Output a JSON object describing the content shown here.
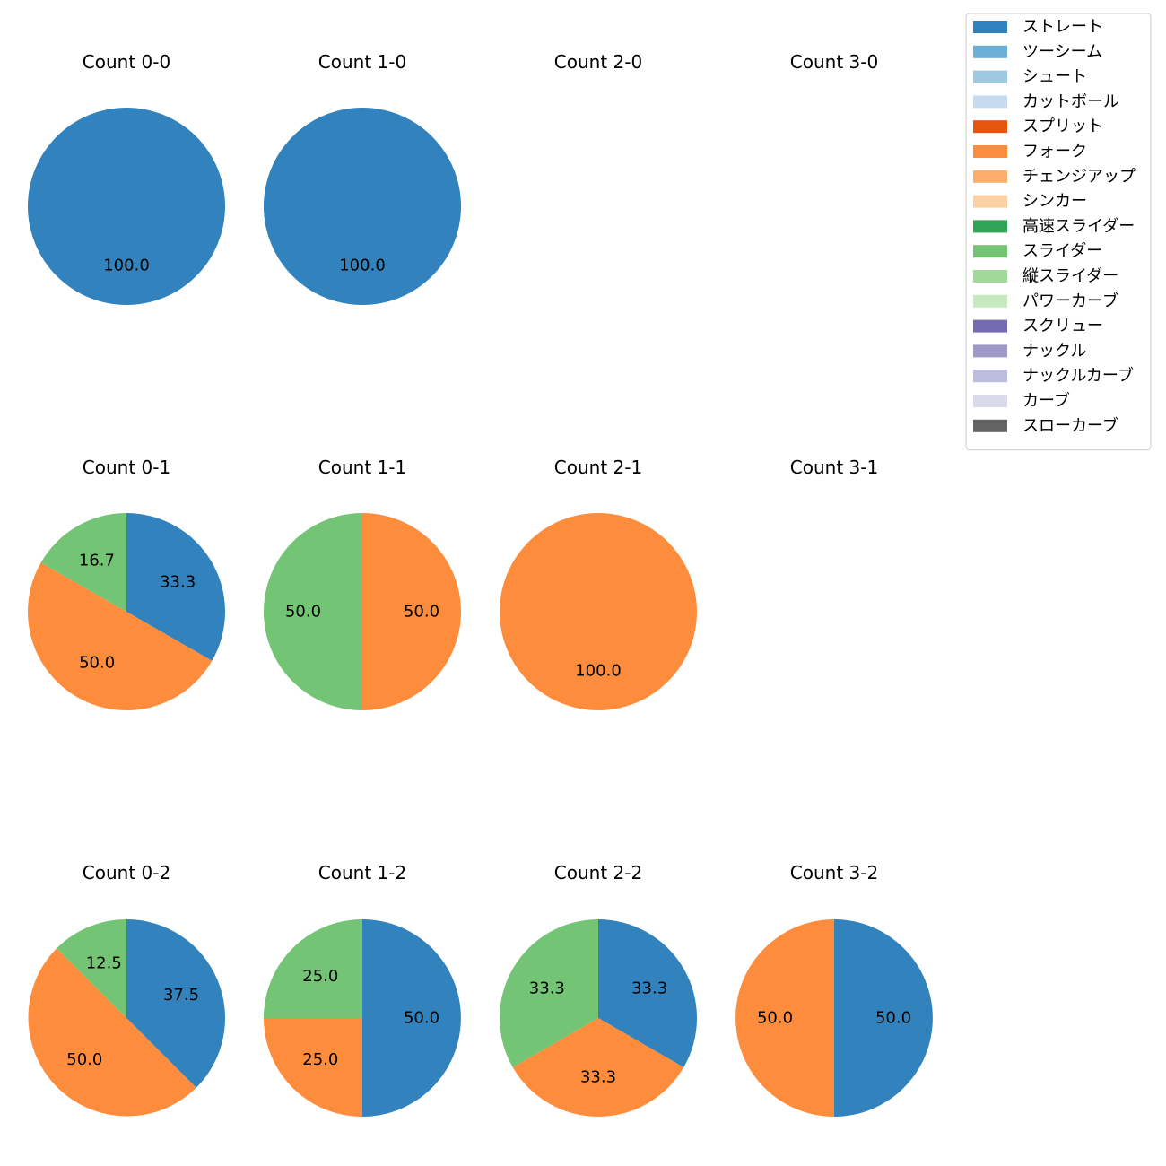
{
  "chart_data": {
    "type": "pie",
    "legend_position": "top-right",
    "categories": [
      "ストレート",
      "ツーシーム",
      "シュート",
      "カットボール",
      "スプリット",
      "フォーク",
      "チェンジアップ",
      "シンカー",
      "高速スライダー",
      "スライダー",
      "縦スライダー",
      "パワーカーブ",
      "スクリュー",
      "ナックル",
      "ナックルカーブ",
      "カーブ",
      "スローカーブ"
    ],
    "colors": [
      "#3182bd",
      "#6baed6",
      "#9ecae1",
      "#c6dbef",
      "#e6550d",
      "#fd8d3c",
      "#fdae6b",
      "#fdd0a2",
      "#31a354",
      "#74c476",
      "#a1d99b",
      "#c7e9c0",
      "#756bb1",
      "#9e9ac8",
      "#bcbddc",
      "#dadaeb",
      "#636363"
    ],
    "pies": [
      {
        "title": "Count 0-0",
        "slices": [
          {
            "category": "ストレート",
            "value": 100.0
          }
        ]
      },
      {
        "title": "Count 1-0",
        "slices": [
          {
            "category": "ストレート",
            "value": 100.0
          }
        ]
      },
      {
        "title": "Count 2-0",
        "slices": []
      },
      {
        "title": "Count 3-0",
        "slices": []
      },
      {
        "title": "Count 0-1",
        "slices": [
          {
            "category": "ストレート",
            "value": 33.3
          },
          {
            "category": "フォーク",
            "value": 50.0
          },
          {
            "category": "スライダー",
            "value": 16.7
          }
        ]
      },
      {
        "title": "Count 1-1",
        "slices": [
          {
            "category": "フォーク",
            "value": 50.0
          },
          {
            "category": "スライダー",
            "value": 50.0
          }
        ]
      },
      {
        "title": "Count 2-1",
        "slices": [
          {
            "category": "フォーク",
            "value": 100.0
          }
        ]
      },
      {
        "title": "Count 3-1",
        "slices": []
      },
      {
        "title": "Count 0-2",
        "slices": [
          {
            "category": "ストレート",
            "value": 37.5
          },
          {
            "category": "フォーク",
            "value": 50.0
          },
          {
            "category": "スライダー",
            "value": 12.5
          }
        ]
      },
      {
        "title": "Count 1-2",
        "slices": [
          {
            "category": "ストレート",
            "value": 50.0
          },
          {
            "category": "フォーク",
            "value": 25.0
          },
          {
            "category": "スライダー",
            "value": 25.0
          }
        ]
      },
      {
        "title": "Count 2-2",
        "slices": [
          {
            "category": "ストレート",
            "value": 33.3
          },
          {
            "category": "フォーク",
            "value": 33.3
          },
          {
            "category": "スライダー",
            "value": 33.3
          }
        ]
      },
      {
        "title": "Count 3-2",
        "slices": [
          {
            "category": "ストレート",
            "value": 50.0
          },
          {
            "category": "フォーク",
            "value": 50.0
          }
        ]
      }
    ]
  }
}
